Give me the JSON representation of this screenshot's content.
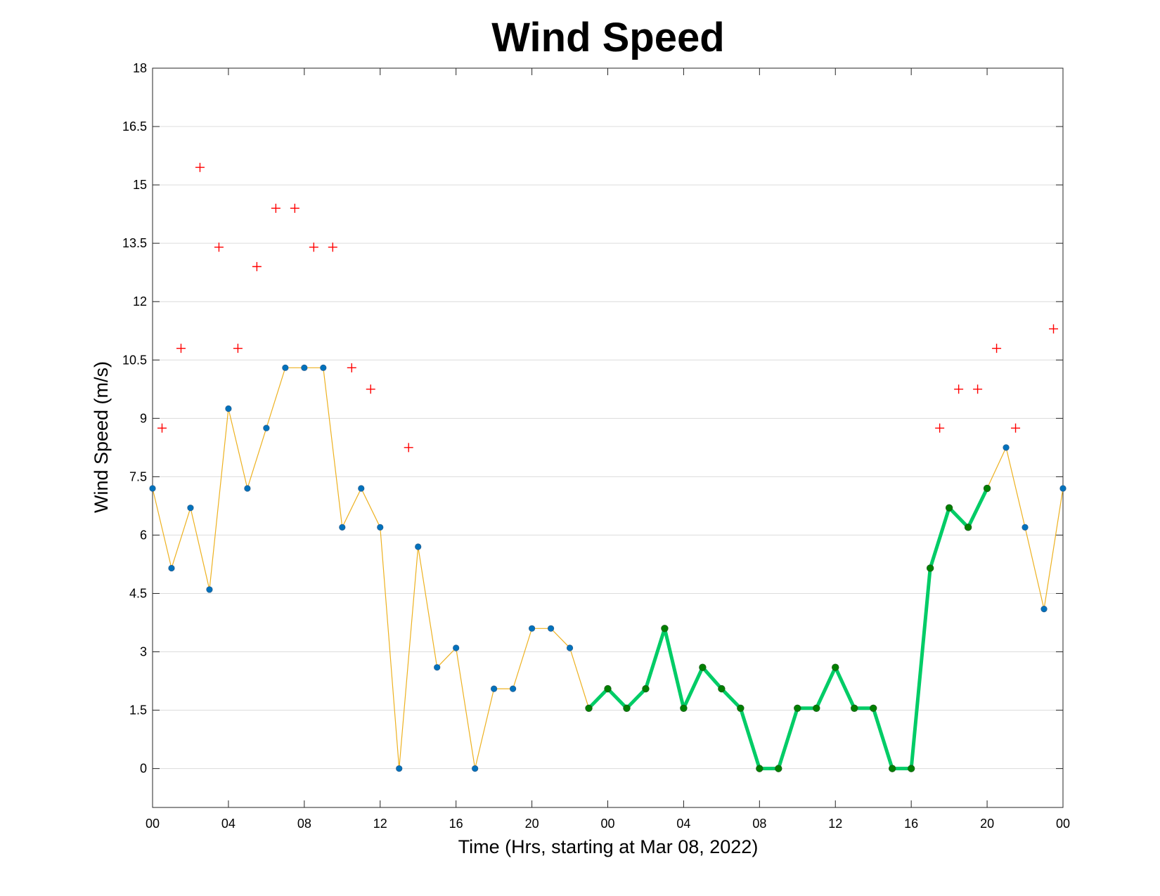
{
  "chart_data": {
    "type": "line",
    "title": "Wind Speed",
    "xlabel": "Time (Hrs, starting at Mar 08, 2022)",
    "ylabel": "Wind Speed (m/s)",
    "xlim": [
      "Mar 08, 2022 00:00",
      "Mar 10, 2022 00:00"
    ],
    "ylim": [
      -1,
      18
    ],
    "x_tick_labels": [
      "00",
      "04",
      "08",
      "12",
      "16",
      "20",
      "00",
      "04",
      "08",
      "12",
      "16",
      "20",
      "00"
    ],
    "y_tick_labels": [
      "0",
      "1.5",
      "3",
      "4.5",
      "6",
      "7.5",
      "9",
      "10.5",
      "12",
      "13.5",
      "15",
      "16.5",
      "18"
    ],
    "grid": "horizontal",
    "x_hours": [
      0,
      1,
      2,
      3,
      4,
      5,
      6,
      7,
      8,
      9,
      10,
      11,
      12,
      13,
      14,
      15,
      16,
      17,
      18,
      19,
      20,
      21,
      22,
      23,
      24,
      25,
      26,
      27,
      28,
      29,
      30,
      31,
      32,
      33,
      34,
      35,
      36,
      37,
      38,
      39,
      40,
      41,
      42,
      43,
      44,
      45,
      46,
      47,
      48
    ],
    "series": [
      {
        "role": "wind speed",
        "color": "#edb120",
        "marker_color": "#0072bd",
        "values": [
          7.2,
          5.15,
          6.7,
          4.6,
          9.25,
          7.2,
          8.75,
          10.3,
          10.3,
          10.3,
          6.2,
          7.2,
          6.2,
          0,
          5.7,
          2.6,
          3.1,
          0,
          2.05,
          2.05,
          3.6,
          3.6,
          3.1,
          1.55,
          2.05,
          1.55,
          2.05,
          3.6,
          1.55,
          2.6,
          2.05,
          1.55,
          0,
          0,
          1.55,
          1.55,
          2.6,
          1.55,
          1.55,
          0,
          0,
          5.15,
          6.7,
          6.2,
          7.2,
          8.25,
          6.2,
          4.1,
          7.2
        ]
      },
      {
        "role": "highlighted segment",
        "color": "#00cc66",
        "marker_color": "#008000",
        "x_hours": [
          23,
          24,
          25,
          26,
          27,
          28,
          29,
          30,
          31,
          32,
          33,
          34,
          35,
          36,
          37,
          38,
          39,
          40,
          41,
          42,
          43,
          44
        ],
        "values": [
          1.55,
          2.05,
          1.55,
          2.05,
          3.6,
          1.55,
          2.6,
          2.05,
          1.55,
          0,
          0,
          1.55,
          1.55,
          2.6,
          1.55,
          1.55,
          0,
          0,
          5.15,
          6.7,
          6.2,
          7.2
        ]
      },
      {
        "role": "gusts",
        "color": "#ff0000",
        "marker": "+",
        "x_hours": [
          0.5,
          1.5,
          2.5,
          3.5,
          4.5,
          5.5,
          6.5,
          7.5,
          8.5,
          9.5,
          10.5,
          11.5,
          13.5,
          41.5,
          42.5,
          43.5,
          44.5,
          45.5,
          47.5
        ],
        "values": [
          8.75,
          10.8,
          15.45,
          13.4,
          10.8,
          12.9,
          14.4,
          14.4,
          13.4,
          13.4,
          10.3,
          9.75,
          8.25,
          8.75,
          9.75,
          9.75,
          10.8,
          8.75,
          11.3
        ]
      }
    ]
  }
}
